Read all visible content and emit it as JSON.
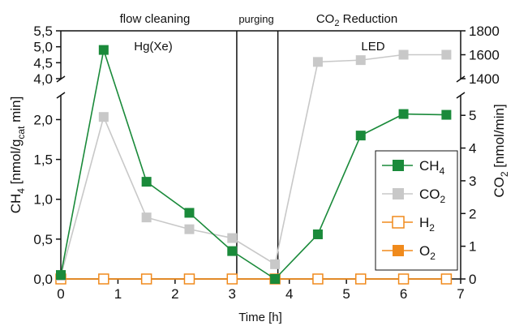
{
  "chart_data": {
    "type": "line",
    "xlabel": "Time [h]",
    "ylabel_left": {
      "main": "CH",
      "sub1": "4",
      "mid": " [nmol/g",
      "sub2": "cat",
      "end": " min]"
    },
    "ylabel_right": {
      "main": "CO",
      "sub1": "2",
      "end": " [nmol/min]"
    },
    "x_ticks": [
      "0",
      "1",
      "2",
      "3",
      "4",
      "5",
      "6",
      "7"
    ],
    "xlim": [
      0,
      7
    ],
    "y_left_lower": {
      "ticks": [
        "0,0",
        "0,5",
        "1,0",
        "1,5",
        "2,0"
      ],
      "values": [
        0,
        0.5,
        1.0,
        1.5,
        2.0
      ],
      "range": [
        0,
        2.3
      ]
    },
    "y_left_upper": {
      "ticks": [
        "4,0",
        "4,5",
        "5,0",
        "5,5"
      ],
      "values": [
        4.0,
        4.5,
        5.0,
        5.5
      ],
      "range": [
        4.0,
        5.5
      ]
    },
    "y_right_lower": {
      "ticks": [
        "0",
        "1",
        "2",
        "3",
        "4",
        "5"
      ],
      "values": [
        0,
        1,
        2,
        3,
        4,
        5
      ],
      "range": [
        0,
        5.6
      ]
    },
    "y_right_upper": {
      "ticks": [
        "1400",
        "1600",
        "1800"
      ],
      "values": [
        1400,
        1600,
        1800
      ],
      "range": [
        1400,
        1800
      ]
    },
    "phases": [
      {
        "label": "flow cleaning",
        "sublabel": "Hg(Xe)"
      },
      {
        "label": "purging",
        "sublabel": ""
      },
      {
        "label": "CO",
        "label_sub": "2",
        "label_end": " Reduction",
        "sublabel": "LED"
      }
    ],
    "phase_boundaries": [
      3.08,
      3.8
    ],
    "series": [
      {
        "name": "CH",
        "name_sub": "4",
        "axis": "left",
        "color": "#1a8a3a",
        "marker": "filled-square",
        "x": [
          0,
          0.75,
          1.5,
          2.25,
          3.0,
          3.75,
          4.5,
          5.25,
          6.0,
          6.75
        ],
        "y": [
          0.05,
          4.9,
          1.22,
          0.83,
          0.35,
          0.0,
          0.56,
          1.8,
          2.07,
          2.06
        ]
      },
      {
        "name": "CO",
        "name_sub": "2",
        "axis": "right",
        "color": "#c8c8c8",
        "marker": "filled-square",
        "x": [
          0,
          0.75,
          1.5,
          2.25,
          3.0,
          3.75,
          4.5,
          5.25,
          6.0,
          6.75
        ],
        "y": [
          0.1,
          4.95,
          1.88,
          1.52,
          1.25,
          0.45,
          1540,
          1555,
          1600,
          1600
        ]
      },
      {
        "name": "H",
        "name_sub": "2",
        "axis": "left",
        "color": "#f08a1c",
        "marker": "open-square",
        "x": [
          0,
          0.75,
          1.5,
          2.25,
          3.0,
          3.75,
          4.5,
          5.25,
          6.0,
          6.75
        ],
        "y": [
          0,
          0,
          0,
          0,
          0,
          0,
          0,
          0,
          0,
          0
        ]
      },
      {
        "name": "O",
        "name_sub": "2",
        "axis": "left",
        "color": "#f08a1c",
        "marker": "filled-square",
        "x": [
          0,
          0.75,
          1.5,
          2.25,
          3.0,
          3.75,
          4.5,
          5.25,
          6.0,
          6.75
        ],
        "y": [
          0,
          0,
          0,
          0,
          0,
          0,
          0,
          0,
          0,
          0
        ]
      }
    ],
    "legend_position": "right-center"
  }
}
